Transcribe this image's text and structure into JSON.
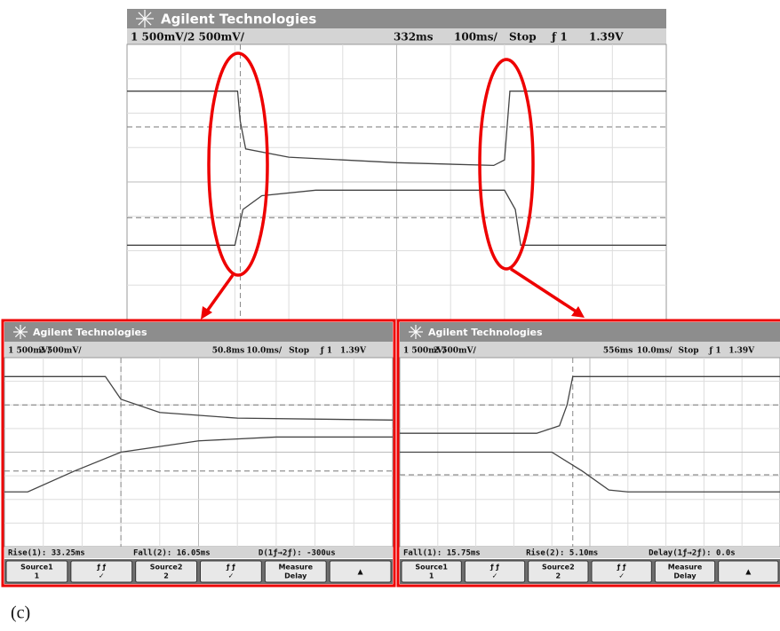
{
  "main": {
    "brand": "Agilent Technologies",
    "status": {
      "ch1": "1 500mV/",
      "ch2": "2 500mV/",
      "delay": "332ms",
      "timebase": "100ms/",
      "run": "Stop",
      "trigger": "ƒ 1",
      "level": "1.39V"
    }
  },
  "left": {
    "brand": "Agilent Technologies",
    "status": {
      "ch1": "1 500mV/",
      "ch2": "2 500mV/",
      "delay": "50.8ms",
      "timebase": "10.0ms/",
      "run": "Stop",
      "trigger": "ƒ 1",
      "level": "1.39V"
    },
    "measurements": [
      "Rise(1): 33.25ms",
      "Fall(2): 16.05ms",
      "D(1ƒ→2ƒ): -300us"
    ],
    "softkeys": [
      [
        "Source1",
        "1"
      ],
      [
        "ƒ  ƒ",
        "✓"
      ],
      [
        "Source2",
        "2"
      ],
      [
        "ƒ  ƒ",
        "✓"
      ],
      [
        "Measure",
        "Delay"
      ],
      [
        "▲"
      ]
    ]
  },
  "right": {
    "brand": "Agilent Technologies",
    "status": {
      "ch1": "1 500mV/",
      "ch2": "2 500mV/",
      "delay": "556ms",
      "timebase": "10.0ms/",
      "run": "Stop",
      "trigger": "ƒ 1",
      "level": "1.39V"
    },
    "measurements": [
      "Fall(1): 15.75ms",
      "Rise(2): 5.10ms",
      "Delay(1ƒ→2ƒ): 0.0s"
    ],
    "softkeys": [
      [
        "Source1",
        "1"
      ],
      [
        "ƒ  ƒ",
        "✓"
      ],
      [
        "Source2",
        "2"
      ],
      [
        "ƒ  ƒ",
        "✓"
      ],
      [
        "Measure",
        "Delay"
      ],
      [
        "▲"
      ]
    ]
  },
  "caption": "(c)"
}
